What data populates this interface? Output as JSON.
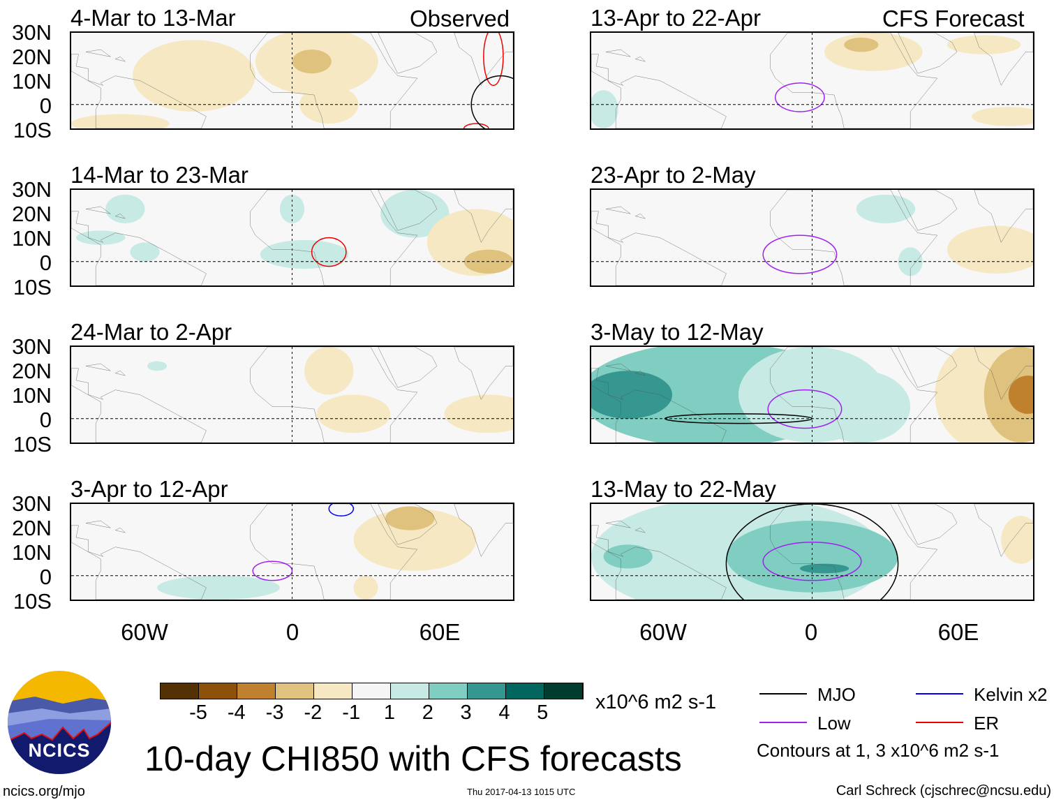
{
  "headers": {
    "left": "Observed",
    "right": "CFS Forecast"
  },
  "panels": [
    {
      "title": "4-Mar to 13-Mar"
    },
    {
      "title": "14-Mar to 23-Mar"
    },
    {
      "title": "24-Mar to 2-Apr"
    },
    {
      "title": "3-Apr to 12-Apr"
    },
    {
      "title": "13-Apr to 22-Apr"
    },
    {
      "title": "23-Apr to 2-May"
    },
    {
      "title": "3-May to 12-May"
    },
    {
      "title": "13-May to 22-May"
    }
  ],
  "lat_labels": [
    "30N",
    "20N",
    "10N",
    "0",
    "10S"
  ],
  "lon_labels": [
    "60W",
    "0",
    "60E"
  ],
  "colorbar": {
    "colors": [
      "#543005",
      "#8c510a",
      "#bf812d",
      "#dfc27d",
      "#f6e8c3",
      "#f5f5f5",
      "#c7eae5",
      "#80cdc1",
      "#35978f",
      "#01665e",
      "#003c30"
    ],
    "labels": [
      "-5",
      "-4",
      "-3",
      "-2",
      "-1",
      "1",
      "2",
      "3",
      "4",
      "5"
    ],
    "units": "x10^6 m2 s-1"
  },
  "legend": {
    "items": [
      {
        "label": "MJO",
        "color": "#000000"
      },
      {
        "label": "Kelvin x2",
        "color": "#0000ee"
      },
      {
        "label": "Low",
        "color": "#a020f0"
      },
      {
        "label": "ER",
        "color": "#ee0000"
      }
    ],
    "note": "Contours at 1, 3 x10^6 m2 s-1"
  },
  "title": "10-day CHI850 with CFS forecasts",
  "logo": {
    "text": "NCICS"
  },
  "footer": {
    "url": "ncics.org/mjo",
    "timestamp": "Thu 2017-04-13 1015 UTC",
    "author": "Carl Schreck (cjschrec@ncsu.edu)"
  }
}
